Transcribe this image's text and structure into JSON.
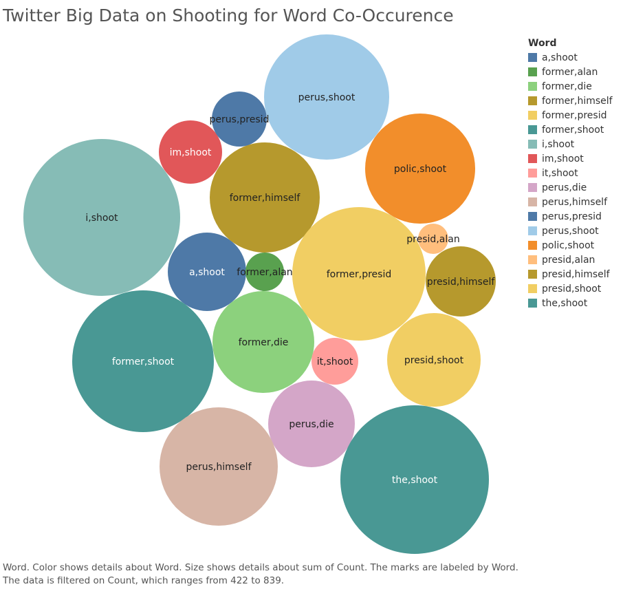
{
  "chart_data": {
    "type": "bubble",
    "title": "Twitter Big Data on Shooting for Word Co-Occurence",
    "legend": {
      "title": "Word",
      "placement": "right"
    },
    "caption": "Word.  Color shows details about Word.  Size shows details about sum of Count.  The marks are labeled by Word. The data is filtered on Count, which ranges from 422 to 839.",
    "series": [
      {
        "name": "a,shoot",
        "value": 530,
        "color": "#4e79a7",
        "text_color": "#ffffff"
      },
      {
        "name": "former,alan",
        "value": 426,
        "color": "#59a14f",
        "text_color": "#222222"
      },
      {
        "name": "former,die",
        "value": 590,
        "color": "#8cd17d",
        "text_color": "#222222"
      },
      {
        "name": "former,himself",
        "value": 650,
        "color": "#b6992d",
        "text_color": "#222222"
      },
      {
        "name": "former,presid",
        "value": 760,
        "color": "#f1ce63",
        "text_color": "#222222"
      },
      {
        "name": "former,shoot",
        "value": 790,
        "color": "#499894",
        "text_color": "#ffffff"
      },
      {
        "name": "i,shoot",
        "value": 839,
        "color": "#86bcb6",
        "text_color": "#222222"
      },
      {
        "name": "im,shoot",
        "value": 470,
        "color": "#e15759",
        "text_color": "#ffffff"
      },
      {
        "name": "it,shoot",
        "value": 445,
        "color": "#ff9d9a",
        "text_color": "#222222"
      },
      {
        "name": "perus,die",
        "value": 545,
        "color": "#d4a6c8",
        "text_color": "#222222"
      },
      {
        "name": "perus,himself",
        "value": 690,
        "color": "#d7b5a6",
        "text_color": "#222222"
      },
      {
        "name": "perus,presid",
        "value": 460,
        "color": "#4e79a7",
        "text_color": "#222222"
      },
      {
        "name": "perus,shoot",
        "value": 730,
        "color": "#a0cbe8",
        "text_color": "#222222"
      },
      {
        "name": "polic,shoot",
        "value": 640,
        "color": "#f28e2b",
        "text_color": "#222222"
      },
      {
        "name": "presid,alan",
        "value": 422,
        "color": "#ffbe7d",
        "text_color": "#222222"
      },
      {
        "name": "presid,himself",
        "value": 505,
        "color": "#b6992d",
        "text_color": "#222222"
      },
      {
        "name": "presid,shoot",
        "value": 560,
        "color": "#f1ce63",
        "text_color": "#222222"
      },
      {
        "name": "the,shoot",
        "value": 829,
        "color": "#499894",
        "text_color": "#ffffff"
      }
    ]
  }
}
